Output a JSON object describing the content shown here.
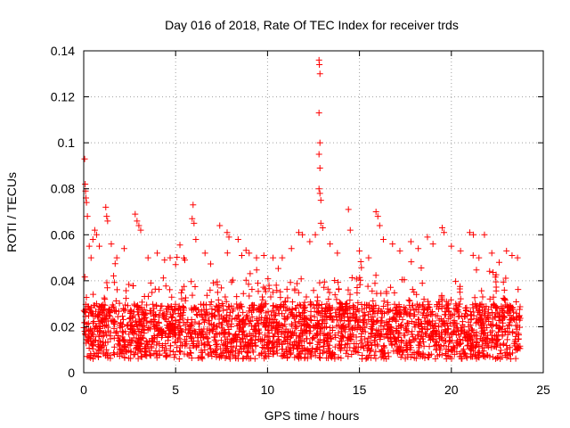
{
  "chart_data": {
    "type": "scatter",
    "title": "Day 016 of 2018, Rate Of TEC Index for receiver trds",
    "xlabel": "GPS time / hours",
    "ylabel": "ROTI / TECUs",
    "xlim": [
      0,
      25
    ],
    "ylim": [
      0,
      0.14
    ],
    "xticks": [
      0,
      5,
      10,
      15,
      20,
      25
    ],
    "xtick_labels": [
      "0",
      "5",
      "10",
      "15",
      "20",
      "25"
    ],
    "yticks": [
      0,
      0.02,
      0.04,
      0.06,
      0.08,
      0.1,
      0.12,
      0.14
    ],
    "ytick_labels": [
      "0",
      "0.02",
      "0.04",
      "0.06",
      "0.08",
      "0.1",
      "0.12",
      "0.14"
    ],
    "grid": true,
    "marker": "plus",
    "series_color": "#ff0000",
    "series": [
      {
        "name": "ROTI",
        "description_of_distribution": "dense band 0.005-0.035 TECU/s for 0-23.8 h with frequent spikes to 0.06",
        "points": [
          [
            0.05,
            0.093
          ],
          [
            0.08,
            0.082
          ],
          [
            0.1,
            0.079
          ],
          [
            0.12,
            0.076
          ],
          [
            0.15,
            0.074
          ],
          [
            0.2,
            0.068
          ],
          [
            0.3,
            0.055
          ],
          [
            0.4,
            0.05
          ],
          [
            0.5,
            0.058
          ],
          [
            0.6,
            0.062
          ],
          [
            0.7,
            0.06
          ],
          [
            0.85,
            0.055
          ],
          [
            1.2,
            0.072
          ],
          [
            1.25,
            0.068
          ],
          [
            1.3,
            0.066
          ],
          [
            1.5,
            0.056
          ],
          [
            1.8,
            0.05
          ],
          [
            2.2,
            0.054
          ],
          [
            2.8,
            0.069
          ],
          [
            2.9,
            0.066
          ],
          [
            3.0,
            0.064
          ],
          [
            3.1,
            0.062
          ],
          [
            3.5,
            0.05
          ],
          [
            4.0,
            0.052
          ],
          [
            4.4,
            0.049
          ],
          [
            4.7,
            0.05
          ],
          [
            5.0,
            0.047
          ],
          [
            5.5,
            0.049
          ],
          [
            5.9,
            0.067
          ],
          [
            6.0,
            0.065
          ],
          [
            5.95,
            0.073
          ],
          [
            6.1,
            0.058
          ],
          [
            6.6,
            0.052
          ],
          [
            7.4,
            0.064
          ],
          [
            7.8,
            0.061
          ],
          [
            7.9,
            0.059
          ],
          [
            8.4,
            0.058
          ],
          [
            8.6,
            0.051
          ],
          [
            9.0,
            0.052
          ],
          [
            9.4,
            0.05
          ],
          [
            9.8,
            0.051
          ],
          [
            10.3,
            0.05
          ],
          [
            10.8,
            0.05
          ],
          [
            11.3,
            0.054
          ],
          [
            11.7,
            0.061
          ],
          [
            11.9,
            0.06
          ],
          [
            12.3,
            0.057
          ],
          [
            12.6,
            0.06
          ],
          [
            12.8,
            0.136
          ],
          [
            12.82,
            0.134
          ],
          [
            12.85,
            0.13
          ],
          [
            12.8,
            0.113
          ],
          [
            12.85,
            0.1
          ],
          [
            12.8,
            0.095
          ],
          [
            12.85,
            0.089
          ],
          [
            12.8,
            0.08
          ],
          [
            12.85,
            0.078
          ],
          [
            12.9,
            0.075
          ],
          [
            12.9,
            0.065
          ],
          [
            13.0,
            0.063
          ],
          [
            13.4,
            0.056
          ],
          [
            13.8,
            0.052
          ],
          [
            14.4,
            0.071
          ],
          [
            14.5,
            0.062
          ],
          [
            15.0,
            0.053
          ],
          [
            15.5,
            0.05
          ],
          [
            15.9,
            0.07
          ],
          [
            16.0,
            0.068
          ],
          [
            16.1,
            0.064
          ],
          [
            16.3,
            0.058
          ],
          [
            16.8,
            0.056
          ],
          [
            17.2,
            0.053
          ],
          [
            17.8,
            0.057
          ],
          [
            18.2,
            0.054
          ],
          [
            18.7,
            0.059
          ],
          [
            19.0,
            0.056
          ],
          [
            19.5,
            0.063
          ],
          [
            19.6,
            0.061
          ],
          [
            20.0,
            0.055
          ],
          [
            20.5,
            0.053
          ],
          [
            21.0,
            0.061
          ],
          [
            21.2,
            0.06
          ],
          [
            21.5,
            0.05
          ],
          [
            21.8,
            0.06
          ],
          [
            22.2,
            0.052
          ],
          [
            22.6,
            0.048
          ],
          [
            23.0,
            0.053
          ],
          [
            23.3,
            0.051
          ],
          [
            23.6,
            0.05
          ]
        ]
      }
    ]
  }
}
